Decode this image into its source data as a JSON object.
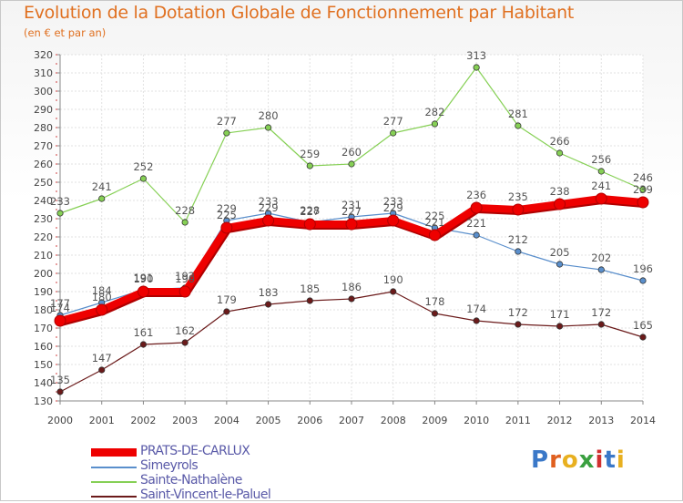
{
  "title": "Evolution de la Dotation Globale de Fonctionnement par Habitant",
  "subtitle": "(en € et par an)",
  "logo": {
    "text": "Proxiti",
    "letters": [
      "P",
      "r",
      "o",
      "x",
      "i",
      "t",
      "i"
    ]
  },
  "chart_data": {
    "type": "line",
    "x": [
      2000,
      2001,
      2002,
      2003,
      2004,
      2005,
      2006,
      2007,
      2008,
      2009,
      2010,
      2011,
      2012,
      2013,
      2014
    ],
    "ylim": [
      130,
      320
    ],
    "yticks": [
      130,
      140,
      150,
      160,
      170,
      180,
      190,
      200,
      210,
      220,
      230,
      240,
      250,
      260,
      270,
      280,
      290,
      300,
      310,
      320
    ],
    "grid": true,
    "legend_position": "bottom-left",
    "series": [
      {
        "name": "Saint-Vincent-le-Paluel",
        "color": "#6b1a1a",
        "values": [
          135,
          147,
          161,
          162,
          179,
          183,
          185,
          186,
          190,
          178,
          174,
          172,
          171,
          172,
          165
        ]
      },
      {
        "name": "Sainte-Nathalène",
        "color": "#86d055",
        "values": [
          233,
          241,
          252,
          228,
          277,
          280,
          259,
          260,
          277,
          282,
          313,
          281,
          266,
          256,
          246
        ]
      },
      {
        "name": "Simeyrols",
        "color": "#5a8fcc",
        "values": [
          177,
          184,
          191,
          192,
          229,
          233,
          228,
          231,
          233,
          225,
          221,
          212,
          205,
          202,
          196
        ]
      },
      {
        "name": "PRATS-DE-CARLUX",
        "color": "#ee0000",
        "values": [
          174,
          180,
          190,
          190,
          225,
          229,
          227,
          227,
          229,
          221,
          236,
          235,
          238,
          241,
          239
        ]
      }
    ]
  }
}
